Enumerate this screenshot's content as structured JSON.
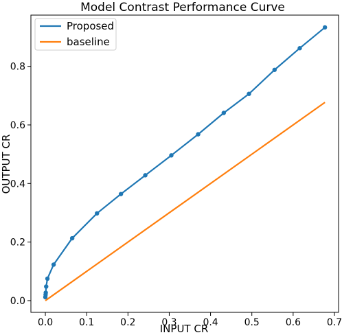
{
  "chart_data": {
    "type": "line",
    "title": "Model Contrast Performance Curve",
    "xlabel": "INPUT CR",
    "ylabel": "OUTPUT CR",
    "xlim": [
      -0.035,
      0.71
    ],
    "ylim": [
      -0.04,
      0.975
    ],
    "xticks": [
      0.0,
      0.1,
      0.2,
      0.3,
      0.4,
      0.5,
      0.6,
      0.7
    ],
    "xtick_labels": [
      "0.0",
      "0.1",
      "0.2",
      "0.3",
      "0.4",
      "0.5",
      "0.6",
      "0.7"
    ],
    "yticks": [
      0.0,
      0.2,
      0.4,
      0.6,
      0.8
    ],
    "ytick_labels": [
      "0.0",
      "0.2",
      "0.4",
      "0.6",
      "0.8"
    ],
    "grid": false,
    "legend_position": "top-left",
    "series": [
      {
        "name": "Proposed",
        "color": "#1f77b4",
        "markers": true,
        "x": [
          0.0,
          0.0005,
          0.001,
          0.002,
          0.005,
          0.02,
          0.065,
          0.125,
          0.183,
          0.242,
          0.305,
          0.37,
          0.432,
          0.493,
          0.555,
          0.616,
          0.677
        ],
        "y": [
          0.012,
          0.02,
          0.027,
          0.048,
          0.075,
          0.123,
          0.213,
          0.298,
          0.364,
          0.428,
          0.496,
          0.568,
          0.641,
          0.706,
          0.788,
          0.862,
          0.933
        ]
      },
      {
        "name": "baseline",
        "color": "#ff7f0e",
        "markers": false,
        "x": [
          0.0,
          0.677
        ],
        "y": [
          0.0,
          0.677
        ]
      }
    ]
  }
}
